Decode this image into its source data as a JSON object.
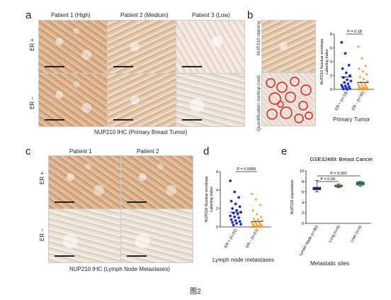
{
  "panels": {
    "a": {
      "letter": "a",
      "col_headers": [
        "Patient 1 (High)",
        "Patient 2 (Medium)",
        "Patient 3 (Low)"
      ],
      "row_labels": [
        "ER +",
        "ER –"
      ],
      "caption": "NUP210 IHC (Primary Breast Tumor)"
    },
    "b": {
      "letter": "b",
      "row_labels": [
        "NUP210 staining",
        "Quantification markup (red)"
      ],
      "caption": "Primary Tumor"
    },
    "c": {
      "letter": "c",
      "col_headers": [
        "Patient 1",
        "Patient 2"
      ],
      "row_labels": [
        "ER +",
        "ER –"
      ],
      "caption": "NUP210 IHC (Lymph Node Metastases)"
    },
    "d": {
      "letter": "d",
      "caption": "Lymph node metastases"
    },
    "e": {
      "letter": "e",
      "caption": "Metastatic sites"
    }
  },
  "figure_label": "图2",
  "chart_data": [
    {
      "id": "b",
      "type": "scatter",
      "ylabel": "NUP210 Nuclear envelope\nLabeling Index",
      "categories": [
        "ER + (n=19)",
        "ER – (n=30)"
      ],
      "ylim": [
        0,
        8
      ],
      "yticks": [
        0,
        2,
        4,
        6,
        8
      ],
      "p_value": "P = 0.18",
      "colors": [
        "#1a2fd0",
        "#f39a2c"
      ],
      "series": [
        {
          "values": [
            6.8,
            5.2,
            3.5,
            3.0,
            2.4,
            2.0,
            1.7,
            1.4,
            1.2,
            1.0,
            0.8,
            0.6,
            0.5,
            0.4,
            0.3,
            0.2,
            0.1,
            0.05,
            0.0
          ]
        },
        {
          "values": [
            6.2,
            4.5,
            3.4,
            3.0,
            2.6,
            2.2,
            1.8,
            1.5,
            1.2,
            1.0,
            0.8,
            0.7,
            0.6,
            0.5,
            0.4,
            0.3,
            0.3,
            0.2,
            0.2,
            0.15,
            0.1,
            0.1,
            0.05,
            0.05,
            0.0,
            0.0,
            0.0,
            0.0,
            0.0,
            0.0
          ]
        }
      ],
      "means": [
        1.8,
        1.0
      ]
    },
    {
      "id": "d",
      "type": "scatter",
      "ylabel": "NUP210 Nuclear envelope\nLabeling Index",
      "categories": [
        "ER + (n=21)",
        "ER – (n=27)"
      ],
      "ylim": [
        0,
        6
      ],
      "yticks": [
        0,
        2,
        4,
        6
      ],
      "p_value": "P = 0.0058",
      "colors": [
        "#1a2fd0",
        "#f39a2c"
      ],
      "series": [
        {
          "values": [
            5.0,
            3.8,
            3.2,
            2.8,
            2.5,
            2.2,
            2.0,
            1.8,
            1.6,
            1.5,
            1.4,
            1.2,
            1.1,
            1.0,
            0.8,
            0.7,
            0.6,
            0.5,
            0.4,
            0.3,
            0.2
          ]
        },
        {
          "values": [
            3.6,
            3.0,
            2.4,
            1.8,
            1.4,
            1.1,
            0.9,
            0.8,
            0.7,
            0.6,
            0.5,
            0.5,
            0.4,
            0.3,
            0.3,
            0.2,
            0.2,
            0.15,
            0.1,
            0.1,
            0.05,
            0.05,
            0.0,
            0.0,
            0.0,
            0.0,
            0.0
          ]
        }
      ],
      "means": [
        1.6,
        0.6
      ]
    },
    {
      "id": "e",
      "type": "box",
      "title": "GSE32489: Breast Cancer",
      "ylabel": "NUP210 expression",
      "categories": [
        "Lymph Node (n=90)",
        "Lung (n=6)",
        "Liver (n=6)"
      ],
      "ylim": [
        0,
        10
      ],
      "yticks": [
        0,
        2,
        4,
        6,
        8,
        10
      ],
      "colors": [
        "#2a3a9a",
        "#e08a2a",
        "#2a9a8a"
      ],
      "boxes": [
        {
          "min": 6.0,
          "q1": 6.4,
          "median": 6.7,
          "q3": 6.9,
          "max": 8.2
        },
        {
          "min": 6.8,
          "q1": 7.0,
          "median": 7.1,
          "q3": 7.3,
          "max": 7.5
        },
        {
          "min": 7.1,
          "q1": 7.3,
          "median": 7.6,
          "q3": 7.9,
          "max": 8.0
        }
      ],
      "pvals": [
        {
          "label": "P = 0.04",
          "from": 0,
          "to": 1
        },
        {
          "label": "P = 0.002",
          "from": 0,
          "to": 2
        }
      ]
    }
  ]
}
